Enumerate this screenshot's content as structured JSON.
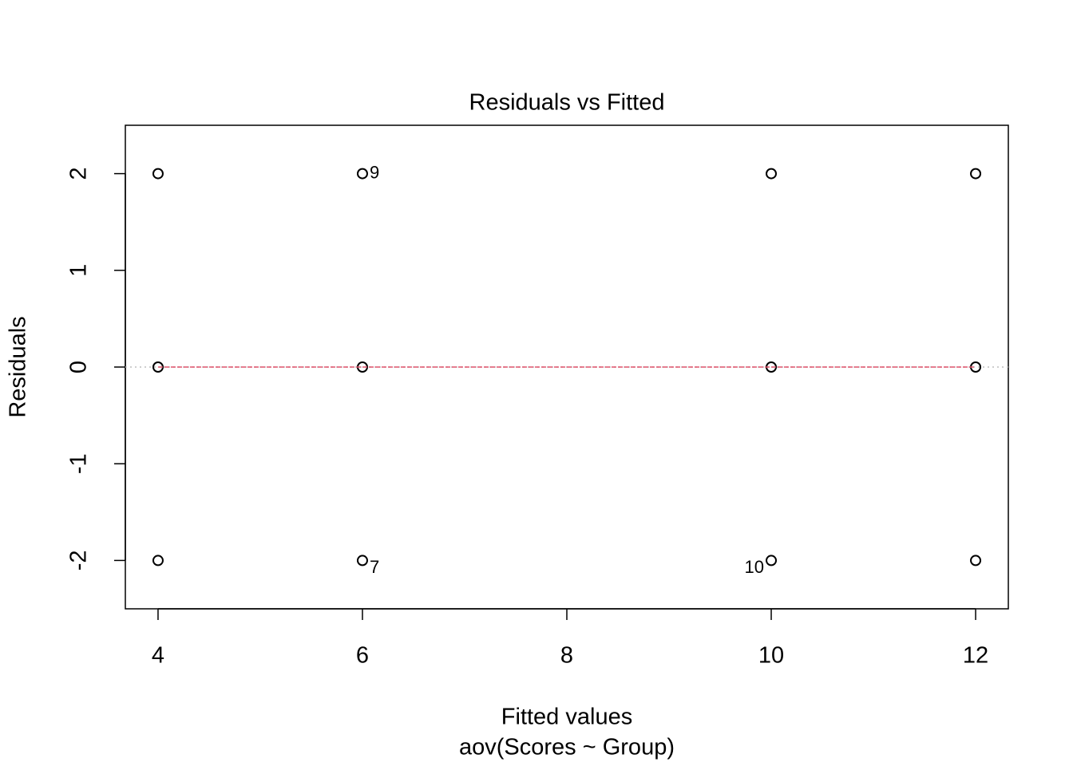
{
  "chart_data": {
    "type": "scatter",
    "title": "Residuals vs Fitted",
    "x_label": "Fitted values",
    "subtitle": "aov(Scores ~ Group)",
    "y_label": "Residuals",
    "series": [
      {
        "style": "points",
        "color": "#000000",
        "x": [
          4,
          4,
          4,
          6,
          6,
          6,
          10,
          10,
          10,
          12,
          12,
          12
        ],
        "values": [
          2,
          0,
          -2,
          2,
          0,
          -2,
          2,
          0,
          -2,
          2,
          0,
          -2
        ]
      },
      {
        "style": "line",
        "color": "#df536b",
        "x": [
          4,
          6,
          10,
          12
        ],
        "values": [
          0,
          0,
          0,
          0
        ]
      }
    ],
    "hline": {
      "value": 0,
      "color": "#bebebe"
    },
    "annotations": [
      {
        "text": "9",
        "x": 6,
        "y": 2,
        "side": "right"
      },
      {
        "text": "7",
        "x": 6,
        "y": -2,
        "side": "right"
      },
      {
        "text": "10",
        "x": 10,
        "y": -2,
        "side": "left"
      }
    ],
    "xlim": [
      3.68,
      12.32
    ],
    "ylim": [
      -2.5,
      2.5
    ],
    "xticks": [
      4,
      6,
      8,
      10,
      12
    ],
    "yticks": [
      -2,
      -1,
      0,
      1,
      2
    ]
  }
}
